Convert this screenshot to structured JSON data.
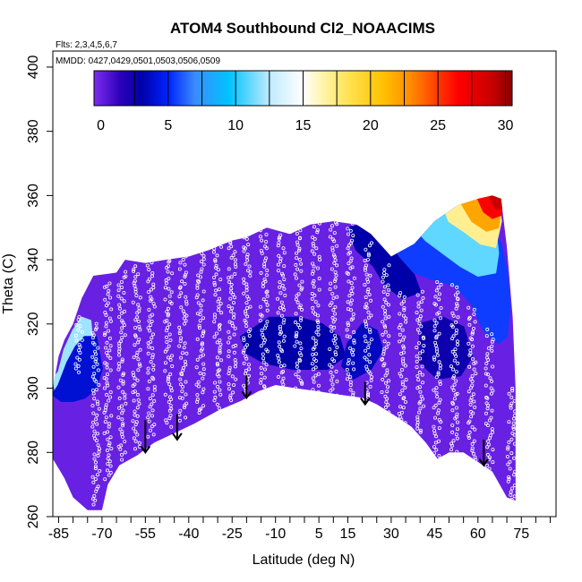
{
  "chart_data": {
    "type": "heatmap",
    "title": "ATOM4 Southbound Cl2_NOAACIMS",
    "annotations": {
      "flights": "Flts: 2,3,4,5,6,7",
      "dates": "MMDD: 0427,0429,0501,0503,0506,0509"
    },
    "xlabel": "Latitude (deg N)",
    "ylabel": "Theta (C)",
    "xlim": [
      -87,
      87
    ],
    "ylim": [
      260,
      405
    ],
    "x_ticks": [
      -85,
      -70,
      -55,
      -40,
      -25,
      -10,
      5,
      15,
      30,
      45,
      60,
      75
    ],
    "x_minor_ticks": [
      -80,
      -75,
      -65,
      -60,
      -50,
      -45,
      -35,
      -30,
      -20,
      -15,
      -5,
      0,
      10,
      20,
      25,
      35,
      40,
      50,
      55,
      65,
      70,
      80,
      85
    ],
    "y_ticks": [
      260,
      280,
      300,
      320,
      340,
      360,
      380,
      400
    ],
    "colorbar": {
      "min": -0.5,
      "max": 30.5,
      "ticks": [
        0,
        5,
        10,
        15,
        20,
        25,
        30
      ],
      "divisions": [
        -0.5,
        2.5,
        5,
        7.5,
        10,
        12.5,
        15,
        17.5,
        20,
        22.5,
        25,
        27.5,
        30
      ],
      "colors": [
        "#7d2cf0",
        "#2a00b8",
        "#0000a8",
        "#0022ff",
        "#3a8cff",
        "#00c3ff",
        "#bfeaff",
        "#ffffff",
        "#fff4a8",
        "#ffe14d",
        "#ffc000",
        "#ff8a00",
        "#ff3a00",
        "#ff0000",
        "#c80000",
        "#8a0000"
      ],
      "color_positions": [
        -0.5,
        1.5,
        3.0,
        5.0,
        7.0,
        9.5,
        12.5,
        15.0,
        16.5,
        18.5,
        21.0,
        23.0,
        25.0,
        26.5,
        29.0,
        30.5
      ]
    },
    "boundary": {
      "top": [
        [
          -87,
          300
        ],
        [
          -85,
          310
        ],
        [
          -83,
          315
        ],
        [
          -80,
          320
        ],
        [
          -77,
          328
        ],
        [
          -73,
          335
        ],
        [
          -65,
          336
        ],
        [
          -62,
          340
        ],
        [
          -55,
          339
        ],
        [
          -48,
          340
        ],
        [
          -40,
          341
        ],
        [
          -33,
          343
        ],
        [
          -25,
          346
        ],
        [
          -20,
          347
        ],
        [
          -13,
          350
        ],
        [
          -5,
          348
        ],
        [
          2,
          351
        ],
        [
          10,
          352
        ],
        [
          18,
          351
        ],
        [
          23,
          348
        ],
        [
          30,
          341
        ],
        [
          38,
          345
        ],
        [
          45,
          352
        ],
        [
          53,
          357
        ],
        [
          60,
          359
        ],
        [
          65,
          360
        ],
        [
          68,
          359
        ],
        [
          70,
          344
        ],
        [
          72,
          322
        ],
        [
          73,
          300
        ],
        [
          73,
          265
        ]
      ],
      "bottom": [
        [
          -87,
          278
        ],
        [
          -83,
          272
        ],
        [
          -80,
          266
        ],
        [
          -75,
          262
        ],
        [
          -70,
          262
        ],
        [
          -68,
          270
        ],
        [
          -64,
          276
        ],
        [
          -58,
          279
        ],
        [
          -52,
          283
        ],
        [
          -45,
          286
        ],
        [
          -38,
          289
        ],
        [
          -30,
          293
        ],
        [
          -22,
          296
        ],
        [
          -16,
          299
        ],
        [
          -10,
          301
        ],
        [
          -3,
          300
        ],
        [
          5,
          299
        ],
        [
          12,
          298
        ],
        [
          20,
          297
        ],
        [
          25,
          295
        ],
        [
          32,
          291
        ],
        [
          37,
          288
        ],
        [
          42,
          283
        ],
        [
          46,
          278
        ],
        [
          50,
          280
        ],
        [
          55,
          280
        ],
        [
          60,
          277
        ],
        [
          65,
          274
        ],
        [
          70,
          266
        ],
        [
          73,
          265
        ]
      ]
    },
    "regions": [
      {
        "value": 12,
        "polygon": [
          [
            -87,
            303
          ],
          [
            -85,
            305
          ],
          [
            -83,
            312
          ],
          [
            -80,
            318
          ],
          [
            -77,
            322
          ],
          [
            -74,
            321
          ],
          [
            -73,
            312
          ],
          [
            -75,
            305
          ],
          [
            -77,
            300
          ],
          [
            -80,
            298
          ],
          [
            -83,
            297
          ],
          [
            -86,
            299
          ]
        ]
      },
      {
        "value": 4,
        "polygon": [
          [
            -87,
            298
          ],
          [
            -85,
            301
          ],
          [
            -82,
            308
          ],
          [
            -79,
            313
          ],
          [
            -76,
            316
          ],
          [
            -72,
            316
          ],
          [
            -70,
            306
          ],
          [
            -72,
            300
          ],
          [
            -76,
            297
          ],
          [
            -80,
            296
          ],
          [
            -84,
            296
          ]
        ]
      },
      {
        "value": 3,
        "polygon": [
          [
            -22,
            316
          ],
          [
            -12,
            322
          ],
          [
            -2,
            322
          ],
          [
            6,
            320
          ],
          [
            12,
            316
          ],
          [
            14,
            310
          ],
          [
            8,
            306
          ],
          [
            -4,
            306
          ],
          [
            -14,
            308
          ],
          [
            -20,
            311
          ]
        ]
      },
      {
        "value": 3.5,
        "polygon": [
          [
            20,
            320
          ],
          [
            25,
            318
          ],
          [
            27,
            312
          ],
          [
            23,
            306
          ],
          [
            17,
            303
          ],
          [
            13,
            307
          ],
          [
            15,
            314
          ]
        ]
      },
      {
        "value": 2.5,
        "polygon": [
          [
            40,
            320
          ],
          [
            48,
            322
          ],
          [
            55,
            319
          ],
          [
            58,
            310
          ],
          [
            54,
            304
          ],
          [
            46,
            303
          ],
          [
            40,
            308
          ]
        ]
      },
      {
        "value": 3,
        "polygon": [
          [
            15,
            350
          ],
          [
            22,
            351
          ],
          [
            28,
            348
          ],
          [
            34,
            342
          ],
          [
            38,
            335
          ],
          [
            40,
            330
          ],
          [
            34,
            328
          ],
          [
            28,
            332
          ],
          [
            24,
            338
          ],
          [
            18,
            343
          ]
        ]
      },
      {
        "value": 5.5,
        "polygon": [
          [
            28,
            348
          ],
          [
            35,
            350
          ],
          [
            42,
            353
          ],
          [
            50,
            356
          ],
          [
            58,
            357
          ],
          [
            64,
            352
          ],
          [
            68,
            345
          ],
          [
            70,
            336
          ],
          [
            71,
            325
          ],
          [
            70,
            316
          ],
          [
            67,
            314
          ],
          [
            62,
            318
          ],
          [
            58,
            326
          ],
          [
            52,
            332
          ],
          [
            44,
            334
          ],
          [
            38,
            336
          ],
          [
            33,
            341
          ]
        ]
      },
      {
        "value": 11,
        "polygon": [
          [
            36,
            352
          ],
          [
            44,
            355
          ],
          [
            52,
            358
          ],
          [
            60,
            359
          ],
          [
            64,
            356
          ],
          [
            66,
            350
          ],
          [
            67,
            342
          ],
          [
            66,
            336
          ],
          [
            60,
            335
          ],
          [
            54,
            338
          ],
          [
            48,
            342
          ],
          [
            42,
            346
          ]
        ]
      },
      {
        "value": 17,
        "polygon": [
          [
            48,
            357
          ],
          [
            56,
            359
          ],
          [
            62,
            360
          ],
          [
            67,
            359
          ],
          [
            68,
            352
          ],
          [
            66,
            344
          ],
          [
            61,
            345
          ],
          [
            55,
            349
          ],
          [
            50,
            352
          ]
        ]
      },
      {
        "value": 22,
        "polygon": [
          [
            54,
            358
          ],
          [
            60,
            359.5
          ],
          [
            66,
            360
          ],
          [
            68,
            357
          ],
          [
            67,
            350
          ],
          [
            63,
            349
          ],
          [
            58,
            352
          ]
        ]
      },
      {
        "value": 26.5,
        "polygon": [
          [
            60,
            359
          ],
          [
            65,
            360
          ],
          [
            68,
            359
          ],
          [
            68,
            354
          ],
          [
            65,
            353
          ],
          [
            62,
            355
          ]
        ]
      },
      {
        "value": 29,
        "polygon": [
          [
            64,
            360
          ],
          [
            68,
            359.5
          ],
          [
            68.5,
            356
          ],
          [
            66,
            356
          ]
        ]
      }
    ],
    "observation_tracks": [
      {
        "x": -78,
        "y0": 305,
        "y1": 322
      },
      {
        "x": -72,
        "y0": 264,
        "y1": 320
      },
      {
        "x": -68,
        "y0": 272,
        "y1": 333
      },
      {
        "x": -63,
        "y0": 278,
        "y1": 336
      },
      {
        "x": -58,
        "y0": 281,
        "y1": 338
      },
      {
        "x": -53,
        "y0": 285,
        "y1": 339
      },
      {
        "x": -47,
        "y0": 288,
        "y1": 340
      },
      {
        "x": -42,
        "y0": 290,
        "y1": 341
      },
      {
        "x": -36,
        "y0": 292,
        "y1": 342
      },
      {
        "x": -30,
        "y0": 294,
        "y1": 344
      },
      {
        "x": -25,
        "y0": 296,
        "y1": 346
      },
      {
        "x": -20,
        "y0": 298,
        "y1": 347
      },
      {
        "x": -14,
        "y0": 300,
        "y1": 349
      },
      {
        "x": -8,
        "y0": 301,
        "y1": 348
      },
      {
        "x": -2,
        "y0": 300,
        "y1": 350
      },
      {
        "x": 4,
        "y0": 299,
        "y1": 351
      },
      {
        "x": 10,
        "y0": 298,
        "y1": 352
      },
      {
        "x": 16,
        "y0": 297,
        "y1": 351
      },
      {
        "x": 22,
        "y0": 296,
        "y1": 345
      },
      {
        "x": 28,
        "y0": 292,
        "y1": 338
      },
      {
        "x": 34,
        "y0": 289,
        "y1": 330
      },
      {
        "x": 40,
        "y0": 285,
        "y1": 330
      },
      {
        "x": 46,
        "y0": 279,
        "y1": 333
      },
      {
        "x": 52,
        "y0": 280,
        "y1": 332
      },
      {
        "x": 58,
        "y0": 278,
        "y1": 325
      },
      {
        "x": 64,
        "y0": 275,
        "y1": 318
      },
      {
        "x": 71.5,
        "y0": 265,
        "y1": 300
      }
    ],
    "arrows": [
      {
        "x": -55,
        "y0": 290,
        "y1": 280
      },
      {
        "x": -44,
        "y0": 292,
        "y1": 284
      },
      {
        "x": -20,
        "y0": 304,
        "y1": 297
      },
      {
        "x": 21,
        "y0": 302,
        "y1": 295
      },
      {
        "x": 62,
        "y0": 284,
        "y1": 276
      }
    ]
  }
}
